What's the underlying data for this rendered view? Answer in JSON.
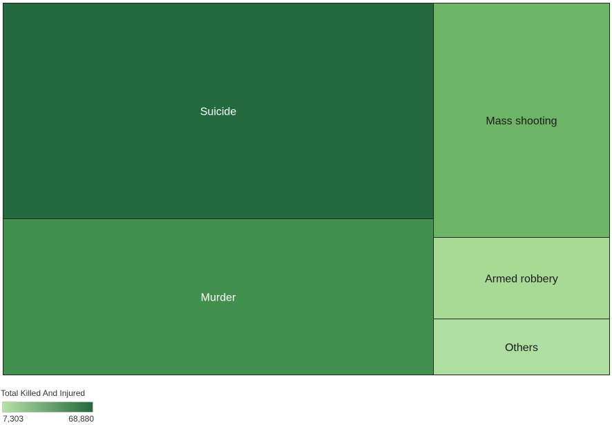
{
  "chart_data": {
    "type": "treemap",
    "title": "",
    "measure": "Total Killed And Injured",
    "nodes": [
      {
        "label": "Suicide",
        "value": 68880,
        "color": "#236a3e",
        "label_color": "#ffffff"
      },
      {
        "label": "Murder",
        "value": 59000,
        "color": "#41904e",
        "label_color": "#ffffff"
      },
      {
        "label": "Mass shooting",
        "value": 42000,
        "color": "#6eb466",
        "label_color": "#1a1a1a"
      },
      {
        "label": "Armed robbery",
        "value": 13900,
        "color": "#a7db95",
        "label_color": "#1a1a1a"
      },
      {
        "label": "Others",
        "value": 7303,
        "color": "#afdfa0",
        "label_color": "#1a1a1a"
      }
    ]
  },
  "legend": {
    "title": "Total Killed And Injured",
    "min_label": "7,303",
    "max_label": "68,880",
    "min_value": 7303,
    "max_value": 68880,
    "color_low": "#b5e2a4",
    "color_high": "#236a3e"
  }
}
